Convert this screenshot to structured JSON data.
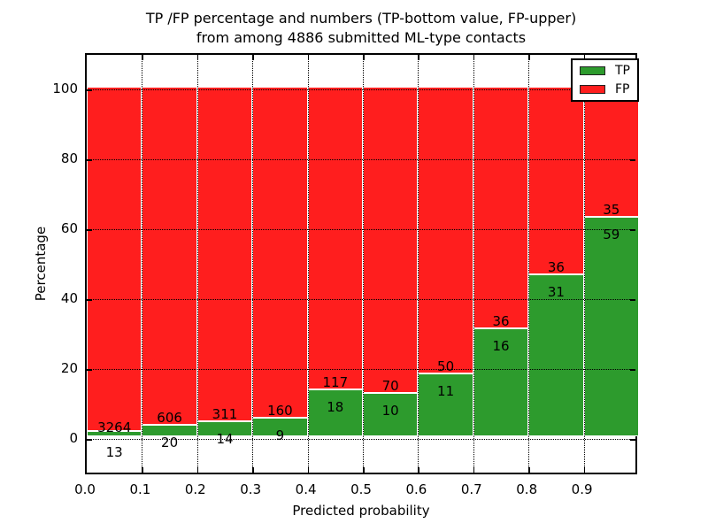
{
  "title": {
    "line1": "TP /FP percentage and numbers (TP-bottom value, FP-upper)",
    "line2": "from among 4886 submitted ML-type contacts"
  },
  "axes": {
    "xlabel": "Predicted probability",
    "ylabel": "Percentage",
    "x_tick_labels": [
      "0.0",
      "0.1",
      "0.2",
      "0.3",
      "0.4",
      "0.5",
      "0.6",
      "0.7",
      "0.8",
      "0.9"
    ],
    "y_tick_labels": [
      "0",
      "20",
      "40",
      "60",
      "80",
      "100"
    ]
  },
  "legend": {
    "entries": [
      {
        "label": "TP",
        "color": "#2d9b2d"
      },
      {
        "label": "FP",
        "color": "#ff1e1e"
      }
    ]
  },
  "chart_data": {
    "type": "bar",
    "subtype": "stacked-percentage-histogram",
    "title": "TP /FP percentage and numbers (TP-bottom value, FP-upper) from among 4886 submitted ML-type contacts",
    "xlabel": "Predicted probability",
    "ylabel": "Percentage",
    "total_submitted": 4886,
    "bins": [
      "0.0-0.1",
      "0.1-0.2",
      "0.2-0.3",
      "0.3-0.4",
      "0.4-0.5",
      "0.5-0.6",
      "0.6-0.7",
      "0.7-0.8",
      "0.8-0.9",
      "0.9-1.0"
    ],
    "x_bin_start": [
      0.0,
      0.1,
      0.2,
      0.3,
      0.4,
      0.5,
      0.6,
      0.7,
      0.8,
      0.9
    ],
    "x_ticks": [
      0.0,
      0.1,
      0.2,
      0.3,
      0.4,
      0.5,
      0.6,
      0.7,
      0.8,
      0.9
    ],
    "y_ticks": [
      0,
      20,
      40,
      60,
      80,
      100
    ],
    "ylim": [
      0,
      100
    ],
    "series": [
      {
        "name": "TP",
        "color": "#2d9b2d",
        "counts": [
          13,
          20,
          14,
          9,
          18,
          10,
          11,
          16,
          31,
          59
        ],
        "percent": [
          0.4,
          3.2,
          4.3,
          5.3,
          13.3,
          12.5,
          18.0,
          30.8,
          46.3,
          62.8
        ]
      },
      {
        "name": "FP",
        "color": "#ff1e1e",
        "counts": [
          3264,
          606,
          311,
          160,
          117,
          70,
          50,
          36,
          36,
          35
        ],
        "percent": [
          99.6,
          96.8,
          95.7,
          94.7,
          86.7,
          87.5,
          82.0,
          69.2,
          53.7,
          37.2
        ]
      }
    ],
    "bar_edge_color": "#ffffff",
    "grid": true,
    "grid_style": "dotted-black-drawn-above-bars",
    "legend_position": "upper-right"
  }
}
